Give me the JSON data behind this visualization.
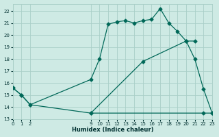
{
  "xlabel": "Humidex (Indice chaleur)",
  "background_color": "#ceeae4",
  "grid_color": "#aacfc8",
  "line_color": "#006858",
  "xlim": [
    0,
    23
  ],
  "ylim": [
    13,
    22.6
  ],
  "yticks": [
    13,
    14,
    15,
    16,
    17,
    18,
    19,
    20,
    21,
    22
  ],
  "xtick_positions": [
    0,
    1,
    2,
    9,
    10,
    11,
    12,
    13,
    14,
    15,
    16,
    17,
    18,
    19,
    20,
    21,
    22,
    23
  ],
  "xtick_labels": [
    "0",
    "1",
    "2",
    "9",
    "10",
    "11",
    "12",
    "13",
    "14",
    "15",
    "16",
    "17",
    "18",
    "19",
    "20",
    "21",
    "22",
    "23"
  ],
  "line1_x": [
    0,
    1,
    2,
    9,
    10,
    11,
    12,
    13,
    14,
    15,
    16,
    17,
    18,
    19,
    20,
    21,
    22,
    23
  ],
  "line1_y": [
    15.6,
    15.0,
    14.2,
    16.3,
    18.0,
    20.9,
    21.1,
    21.2,
    21.0,
    21.2,
    21.3,
    22.2,
    21.0,
    20.3,
    19.5,
    18.0,
    15.5,
    13.5
  ],
  "line2_x": [
    0,
    1,
    2,
    9,
    22,
    23
  ],
  "line2_y": [
    15.6,
    15.0,
    14.2,
    13.5,
    13.5,
    13.5
  ],
  "line3_x": [
    9,
    15,
    20,
    21
  ],
  "line3_y": [
    13.5,
    17.8,
    19.5,
    19.5
  ],
  "marker": "D",
  "marker_size": 2.5,
  "linewidth": 0.9,
  "tick_fontsize": 5,
  "xlabel_fontsize": 6,
  "tick_color": "#003030",
  "xlabel_color": "#003030"
}
